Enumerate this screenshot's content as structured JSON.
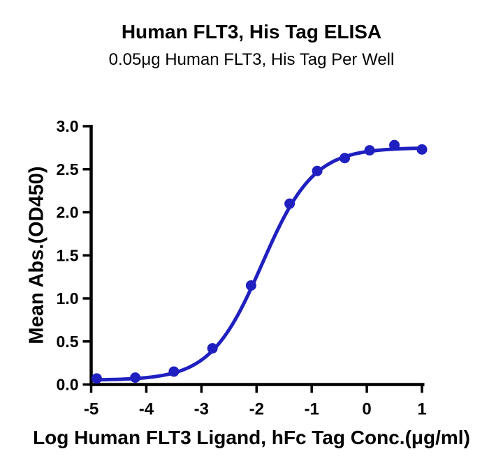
{
  "chart_data": {
    "type": "scatter",
    "title": "Human FLT3, His Tag ELISA",
    "subtitle": "0.05μg Human FLT3, His Tag Per Well",
    "xlabel": "Log Human FLT3 Ligand, hFc Tag Conc.(μg/ml)",
    "ylabel": "Mean Abs.(OD450)",
    "series": [
      {
        "name": "Human FLT3 Ligand, hFc Tag",
        "x": [
          -4.9,
          -4.2,
          -3.5,
          -2.8,
          -2.1,
          -1.4,
          -0.9,
          -0.4,
          0.05,
          0.5,
          1.0
        ],
        "y": [
          0.07,
          0.08,
          0.15,
          0.42,
          1.15,
          2.1,
          2.48,
          2.63,
          2.72,
          2.78,
          2.73
        ]
      }
    ],
    "curve_fit": {
      "model": "4PL",
      "bottom": 0.05,
      "top": 2.75,
      "log_ec50": -1.9,
      "hill_slope": 0.93
    },
    "x_ticks": [
      -5,
      -4,
      -3,
      -2,
      -1,
      0,
      1
    ],
    "y_ticks": [
      0.0,
      0.5,
      1.0,
      1.5,
      2.0,
      2.5,
      3.0
    ],
    "xlim": [
      -5,
      1
    ],
    "ylim": [
      0,
      3
    ],
    "grid": false,
    "legend": "none",
    "colors": {
      "series": "#2020c0",
      "axis": "#000000",
      "background": "#ffffff"
    }
  }
}
